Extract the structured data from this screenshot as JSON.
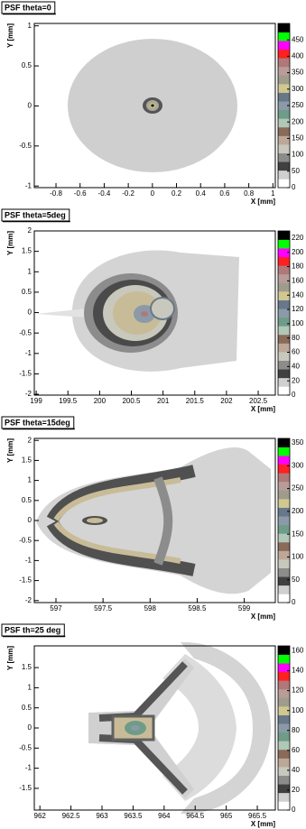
{
  "chart_data": [
    {
      "type": "heatmap",
      "title": "PSF theta=0",
      "x_label": "X [mm]",
      "y_label": "Y [mm]",
      "xlim": [
        -0.98,
        1.02
      ],
      "xticks": [
        -0.8,
        -0.6,
        -0.4,
        -0.2,
        0,
        0.2,
        0.4,
        0.6,
        0.8,
        1
      ],
      "ylim": [
        -1.02,
        1.03
      ],
      "yticks": [
        -1,
        -0.5,
        0,
        0.5,
        1
      ],
      "zlim": [
        0,
        500
      ],
      "zticks": [
        0,
        50,
        100,
        150,
        200,
        250,
        300,
        350,
        400,
        450
      ],
      "palette": [
        "#ffffff",
        "#d0d0d0",
        "#404040",
        "#8c8c8c",
        "#c8c8bc",
        "#bca898",
        "#8a6a58",
        "#b0c8b8",
        "#6e9c88",
        "#8a9aa8",
        "#68788a",
        "#d0c890",
        "#a09c8c",
        "#b89c98",
        "#b07878",
        "#ff2020",
        "#ff00ff",
        "#00ff00",
        "#000000"
      ]
    },
    {
      "type": "heatmap",
      "title": "PSF theta=5deg",
      "x_label": "X [mm]",
      "y_label": "Y [mm]",
      "xlim": [
        198.97,
        202.77
      ],
      "xticks": [
        199,
        199.5,
        200,
        200.5,
        201,
        201.5,
        202,
        202.5
      ],
      "ylim": [
        -2.02,
        2.0
      ],
      "yticks": [
        -2,
        -1.5,
        -1,
        -0.5,
        0,
        0.5,
        1,
        1.5,
        2
      ],
      "zlim": [
        0,
        230
      ],
      "zticks": [
        0,
        20,
        40,
        60,
        80,
        100,
        120,
        140,
        160,
        180,
        200,
        220
      ],
      "palette": [
        "#ffffff",
        "#d0d0d0",
        "#404040",
        "#8c8c8c",
        "#c8c8bc",
        "#bca898",
        "#8a6a58",
        "#b0c8b8",
        "#6e9c88",
        "#8a9aa8",
        "#68788a",
        "#d0c890",
        "#a09c8c",
        "#b89c98",
        "#b07878",
        "#ff2020",
        "#ff00ff",
        "#00ff00",
        "#000000"
      ]
    },
    {
      "type": "heatmap",
      "title": "PSF theta=15deg",
      "x_label": "X [mm]",
      "y_label": "Y [mm]",
      "xlim": [
        596.77,
        599.33
      ],
      "xticks": [
        597,
        597.5,
        598,
        598.5,
        599
      ],
      "ylim": [
        -2.05,
        2.05
      ],
      "yticks": [
        -2,
        -1.5,
        -1,
        -0.5,
        0,
        0.5,
        1,
        1.5,
        2
      ],
      "zlim": [
        0,
        360
      ],
      "zticks": [
        0,
        50,
        100,
        150,
        200,
        250,
        300,
        350
      ],
      "palette": [
        "#ffffff",
        "#d0d0d0",
        "#404040",
        "#8c8c8c",
        "#c8c8bc",
        "#bca898",
        "#8a6a58",
        "#b0c8b8",
        "#6e9c88",
        "#8a9aa8",
        "#68788a",
        "#d0c890",
        "#a09c8c",
        "#b89c98",
        "#b07878",
        "#ff2020",
        "#ff00ff",
        "#00ff00",
        "#000000"
      ]
    },
    {
      "type": "heatmap",
      "title": "PSF th=25 deg",
      "x_label": "X [mm]",
      "y_label": "Y [mm]",
      "xlim": [
        961.91,
        965.79
      ],
      "xticks": [
        962,
        962.5,
        963,
        963.5,
        964,
        964.5,
        965,
        965.5
      ],
      "ylim": [
        -2.04,
        2.04
      ],
      "yticks": [
        -1.5,
        -1,
        -0.5,
        0,
        0.5,
        1,
        1.5
      ],
      "zlim": [
        0,
        165
      ],
      "zticks": [
        0,
        20,
        40,
        60,
        80,
        100,
        120,
        140,
        160
      ],
      "palette": [
        "#ffffff",
        "#d0d0d0",
        "#404040",
        "#8c8c8c",
        "#c8c8bc",
        "#bca898",
        "#8a6a58",
        "#b0c8b8",
        "#6e9c88",
        "#8a9aa8",
        "#68788a",
        "#d0c890",
        "#a09c8c",
        "#b89c98",
        "#b07878",
        "#ff2020",
        "#ff00ff",
        "#00ff00",
        "#000000"
      ]
    }
  ]
}
